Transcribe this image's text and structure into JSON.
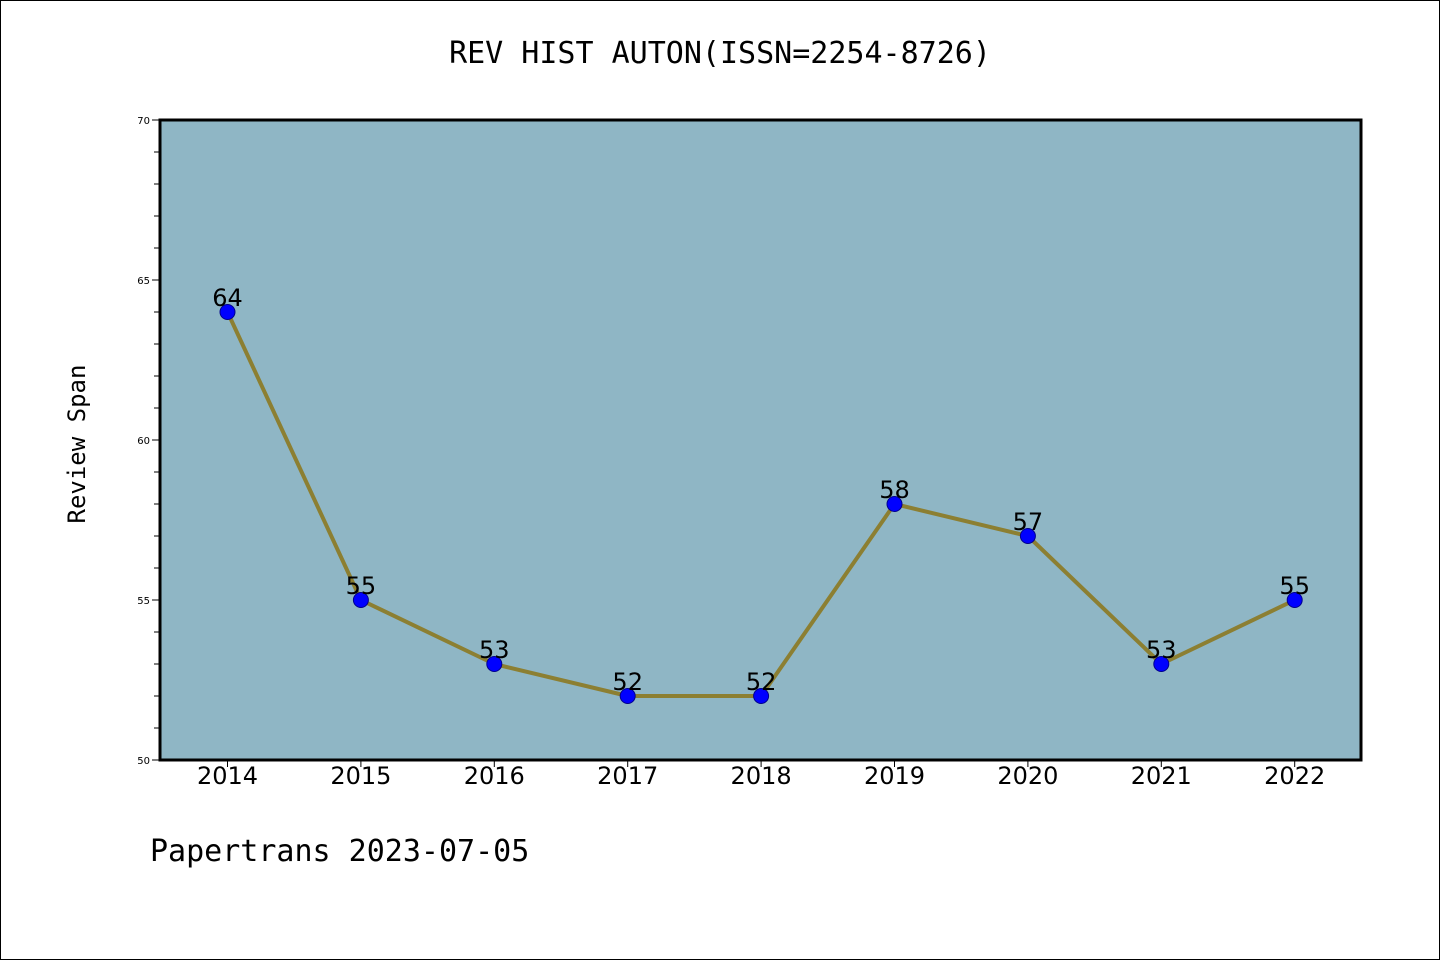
{
  "chart_data": {
    "type": "line",
    "title": "REV HIST AUTON(ISSN=2254-8726)",
    "xlabel": "",
    "ylabel": "Review Span",
    "categories": [
      "2014",
      "2015",
      "2016",
      "2017",
      "2018",
      "2019",
      "2020",
      "2021",
      "2022"
    ],
    "values": [
      64,
      55,
      53,
      52,
      52,
      58,
      57,
      53,
      55
    ],
    "ylim": [
      50,
      70
    ],
    "yticks": [
      50,
      55,
      60,
      65,
      70
    ],
    "data_labels": true,
    "grid": false,
    "legend": "none",
    "colors": {
      "plot_background": "#8fb6c5",
      "line": "#8c7f32",
      "marker": "#0000ff",
      "marker_edge": "#00008b"
    }
  },
  "footer": "Papertrans 2023-07-05"
}
